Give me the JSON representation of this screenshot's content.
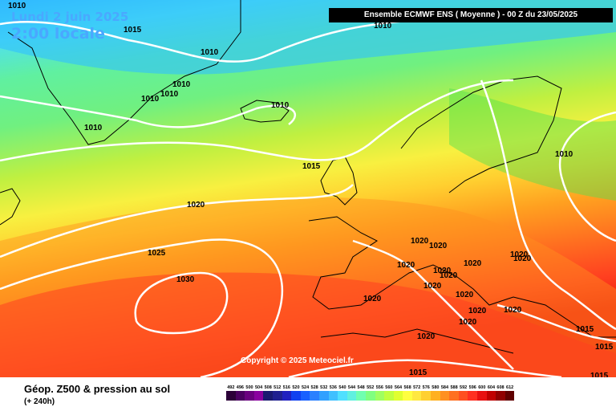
{
  "header": {
    "date": "Lundi 2 juin 2025",
    "time": "2:00 locale",
    "run_info": "Ensemble ECMWF ENS  ( Moyenne )  -  00 Z du 23/05/2025"
  },
  "copyright": "Copyright © 2025 Meteociel.fr",
  "footer": {
    "title": "Géop. Z500 & pression au sol",
    "subtitle": "(+ 240h)"
  },
  "scale": {
    "values": [
      "492",
      "496",
      "500",
      "504",
      "508",
      "512",
      "516",
      "520",
      "524",
      "528",
      "532",
      "536",
      "540",
      "544",
      "548",
      "552",
      "556",
      "560",
      "564",
      "568",
      "572",
      "576",
      "580",
      "584",
      "588",
      "592",
      "596",
      "600",
      "604",
      "608",
      "612"
    ],
    "colors": [
      "#2c0038",
      "#4a0060",
      "#6a007f",
      "#8a009f",
      "#1a1a70",
      "#202090",
      "#2020c0",
      "#1040f0",
      "#1860ff",
      "#2a80ff",
      "#30a0ff",
      "#40c0ff",
      "#50e0ff",
      "#60f0e0",
      "#70ffb0",
      "#80ff80",
      "#a0ff60",
      "#c0ff40",
      "#e0ff30",
      "#ffff40",
      "#ffe840",
      "#ffd030",
      "#ffb020",
      "#ff9020",
      "#ff7020",
      "#ff5020",
      "#ff3020",
      "#e81010",
      "#c00000",
      "#900000",
      "#600000"
    ]
  },
  "isobars": [
    "1010",
    "1015",
    "1010",
    "1010",
    "1010",
    "1010",
    "1010",
    "1010",
    "1010",
    "1015",
    "1020",
    "1010",
    "1025",
    "1030",
    "1020",
    "1020",
    "1020",
    "1020",
    "1020",
    "1020",
    "1020",
    "1020",
    "1020",
    "1020",
    "1020",
    "1020",
    "1020",
    "1020",
    "1015",
    "1015",
    "1015",
    "1020",
    "1015"
  ]
}
